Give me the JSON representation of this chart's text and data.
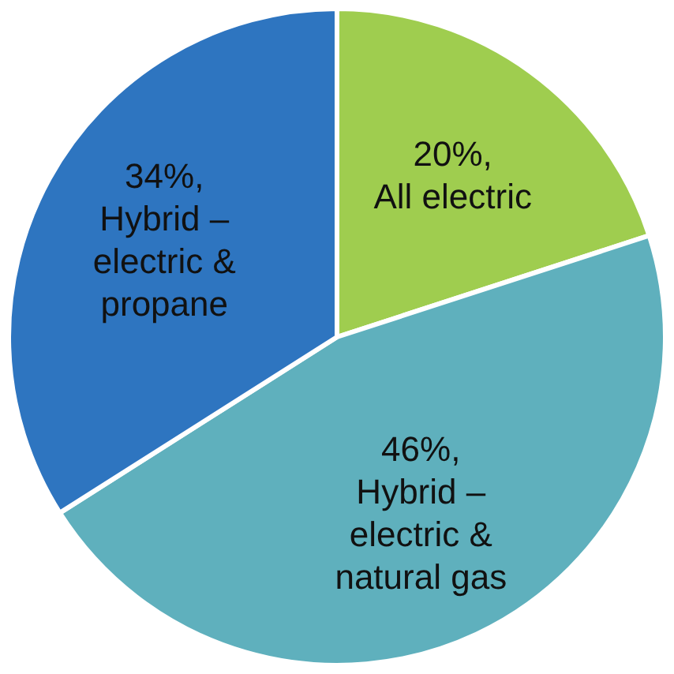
{
  "chart_data": {
    "type": "pie",
    "categories": [
      "All electric",
      "Hybrid – electric & natural gas",
      "Hybrid – electric & propane"
    ],
    "values": [
      20,
      46,
      34
    ],
    "colors": [
      "#9fcd4f",
      "#5fb0bd",
      "#2e75c0"
    ],
    "value_labels": [
      "20%,",
      "46%,",
      "34%,"
    ],
    "legend": false
  }
}
